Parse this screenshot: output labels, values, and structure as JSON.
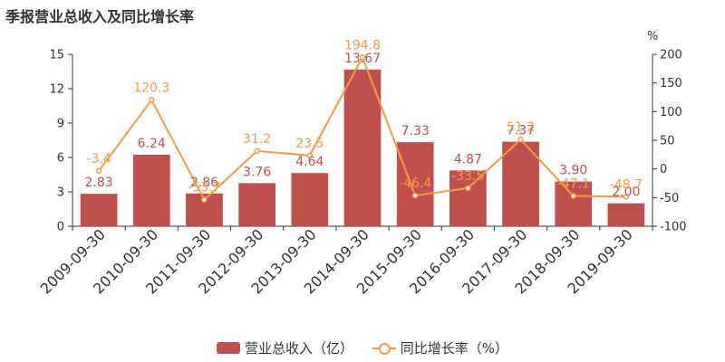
{
  "chart_data": {
    "type": "bar",
    "title": "季报营业总收入及同比增长率",
    "categories": [
      "2009-09-30",
      "2010-09-30",
      "2011-09-30",
      "2012-09-30",
      "2013-09-30",
      "2014-09-30",
      "2015-09-30",
      "2016-09-30",
      "2017-09-30",
      "2018-09-30",
      "2019-09-30"
    ],
    "series": [
      {
        "name": "营业总收入（亿）",
        "type": "bar",
        "axis": "left",
        "color": "#c0504d",
        "values": [
          2.83,
          6.24,
          2.86,
          3.76,
          4.64,
          13.67,
          7.33,
          4.87,
          7.37,
          3.9,
          2.0
        ],
        "labels": [
          "2.83",
          "6.24",
          "2.86",
          "3.76",
          "4.64",
          "13.67",
          "7.33",
          "4.87",
          "7.37",
          "3.90",
          "2.00"
        ]
      },
      {
        "name": "同比增长率（%）",
        "type": "line",
        "axis": "right",
        "color": "#f59a46",
        "values": [
          -3.4,
          120.3,
          -53.7,
          31.2,
          23.5,
          194.8,
          -46.4,
          -33.5,
          51.2,
          -47.1,
          -48.7
        ],
        "labels": [
          "-3.4",
          "120.3",
          "-53.7",
          "31.2",
          "23.5",
          "194.8",
          "-46.4",
          "-33.5",
          "51.2",
          "-47.1",
          "-48.7"
        ]
      }
    ],
    "y_left": {
      "min": 0,
      "max": 15,
      "ticks": [
        "0",
        "3",
        "6",
        "9",
        "12",
        "15"
      ]
    },
    "y_right": {
      "min": -100,
      "max": 200,
      "unit": "%",
      "ticks": [
        "-100",
        "-50",
        "0",
        "50",
        "100",
        "150",
        "200"
      ]
    },
    "grid": false,
    "legend_position": "bottom-center"
  },
  "legend": {
    "bar_label": "营业总收入（亿）",
    "line_label": "同比增长率（%）"
  }
}
